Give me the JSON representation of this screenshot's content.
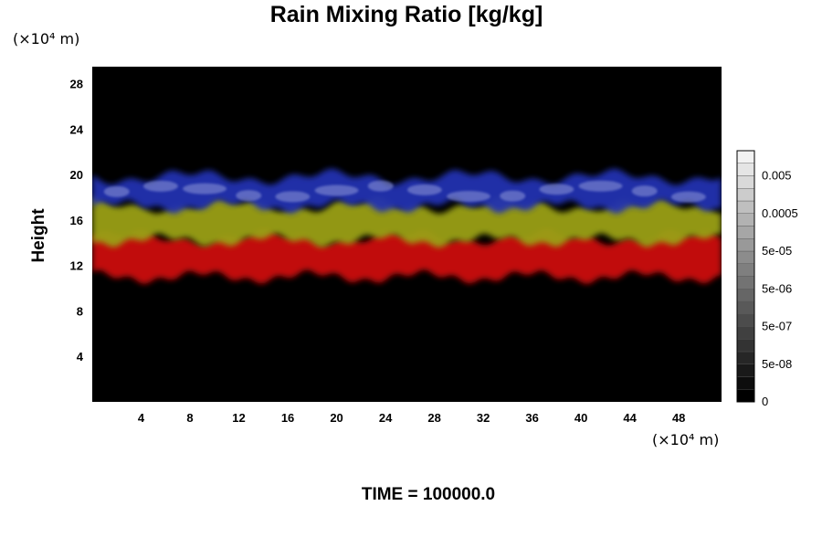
{
  "chart_data": {
    "type": "heatmap",
    "title": "Rain Mixing Ratio [kg/kg]",
    "xlabel": "",
    "ylabel": "Height",
    "x_unit": "(×10⁴ m)",
    "y_unit": "(×10⁴ m)",
    "xlim": [
      0,
      51.5
    ],
    "ylim": [
      0,
      29.5
    ],
    "x_ticks": [
      4,
      8,
      12,
      16,
      20,
      24,
      28,
      32,
      36,
      40,
      44,
      48
    ],
    "y_ticks": [
      4,
      8,
      12,
      16,
      20,
      24,
      28
    ],
    "grid": false,
    "layers": [
      {
        "color": "#2030b0",
        "approx_height_range": [
          17.2,
          19.8
        ]
      },
      {
        "color": "#9aa014",
        "approx_height_range": [
          14.2,
          17.3
        ]
      },
      {
        "color": "#cc0a0a",
        "approx_height_range": [
          11.0,
          14.5
        ]
      }
    ],
    "background_color": "#000000",
    "colorbar": {
      "levels": [
        "0",
        "5e-08",
        "5e-07",
        "5e-06",
        "5e-05",
        "0.0005",
        "0.005"
      ],
      "n_bands": 20,
      "color_low": "#000000",
      "color_high": "#f2f2f2"
    }
  },
  "footer": {
    "time_label": "TIME = 100000.0"
  }
}
